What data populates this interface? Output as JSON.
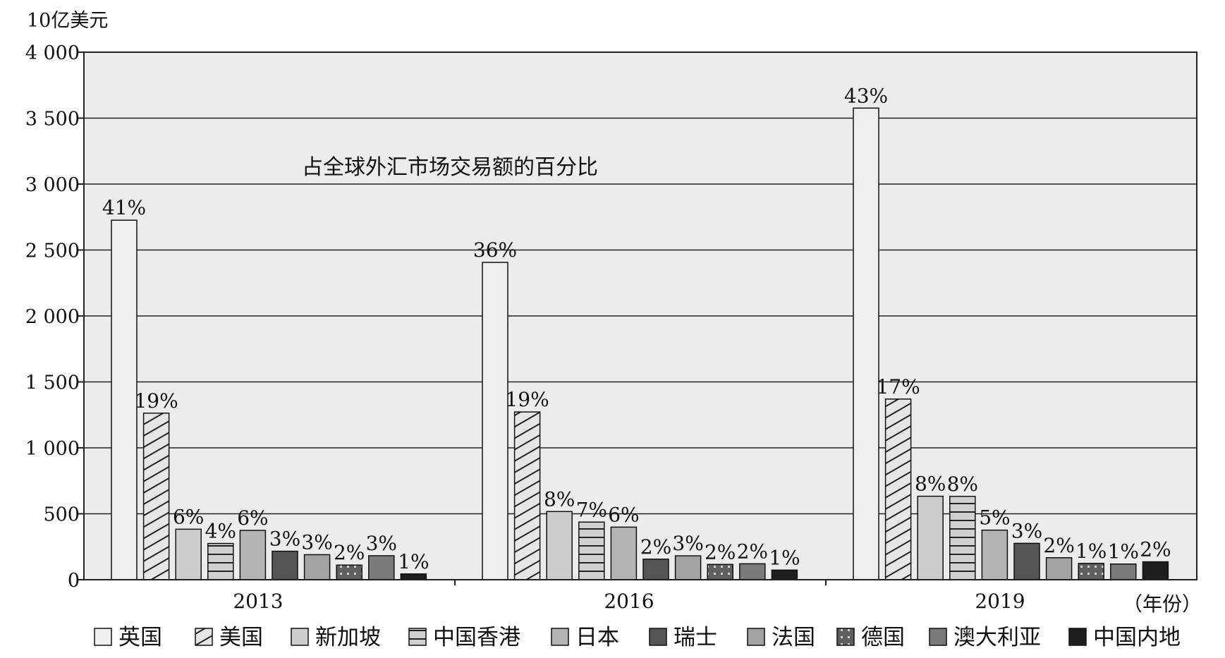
{
  "chart_data": {
    "type": "bar",
    "y_unit_label": "10亿美元",
    "x_unit_label": "（年份）",
    "annotation": "占全球外汇市场交易额的百分比",
    "categories": [
      "2013",
      "2016",
      "2019"
    ],
    "ylim": [
      0,
      4000
    ],
    "yticks": [
      "0",
      "500",
      "1 000",
      "1 500",
      "2 000",
      "2 500",
      "3 000",
      "3 500",
      "4 000"
    ],
    "grid": true,
    "legend_position": "bottom",
    "series": [
      {
        "name": "英国",
        "fill": "#efefef",
        "pattern": "solid",
        "values": [
          2726,
          2406,
          3576
        ],
        "percents": [
          "41%",
          "36%",
          "43%"
        ]
      },
      {
        "name": "美国",
        "fill": "#e6e6e6",
        "pattern": "diagonal",
        "values": [
          1263,
          1272,
          1370
        ],
        "percents": [
          "19%",
          "19%",
          "17%"
        ]
      },
      {
        "name": "新加坡",
        "fill": "#cdcdcd",
        "pattern": "solid",
        "values": [
          383,
          517,
          633
        ],
        "percents": [
          "6%",
          "8%",
          "8%"
        ]
      },
      {
        "name": "中国香港",
        "fill": "#d0d0d0",
        "pattern": "horizontal",
        "values": [
          275,
          437,
          632
        ],
        "percents": [
          "4%",
          "7%",
          "8%"
        ]
      },
      {
        "name": "日本",
        "fill": "#b4b4b4",
        "pattern": "solid",
        "values": [
          374,
          399,
          376
        ],
        "percents": [
          "6%",
          "6%",
          "5%"
        ]
      },
      {
        "name": "瑞士",
        "fill": "#555555",
        "pattern": "solid",
        "values": [
          216,
          156,
          276
        ],
        "percents": [
          "3%",
          "2%",
          "3%"
        ]
      },
      {
        "name": "法国",
        "fill": "#a3a3a3",
        "pattern": "solid",
        "values": [
          190,
          181,
          167
        ],
        "percents": [
          "3%",
          "3%",
          "2%"
        ]
      },
      {
        "name": "德国",
        "fill": "#5f5f5f",
        "pattern": "dotted",
        "values": [
          111,
          116,
          124
        ],
        "percents": [
          "2%",
          "2%",
          "1%"
        ]
      },
      {
        "name": "澳大利亚",
        "fill": "#7b7b7b",
        "pattern": "solid",
        "values": [
          182,
          121,
          119
        ],
        "percents": [
          "3%",
          "2%",
          "1%"
        ]
      },
      {
        "name": "中国内地",
        "fill": "#1e1e1e",
        "pattern": "solid",
        "values": [
          44,
          73,
          136
        ],
        "percents": [
          "1%",
          "1%",
          "2%"
        ]
      }
    ]
  }
}
